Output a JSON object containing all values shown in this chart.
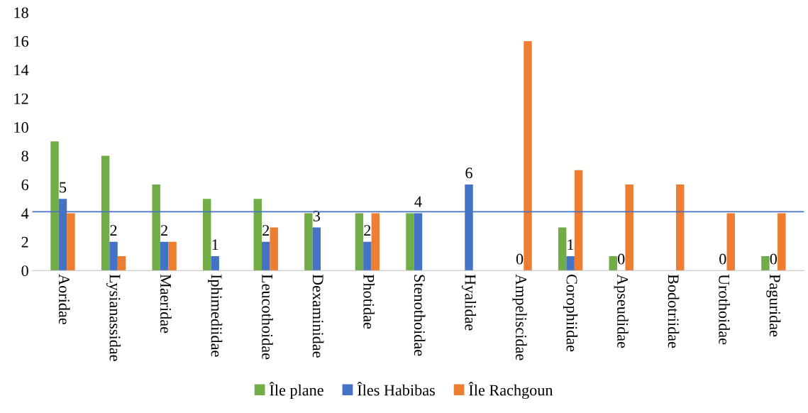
{
  "chart_data": {
    "type": "bar",
    "categories": [
      "Aoridae",
      "Lysianassidae",
      "Maeridae",
      "Iphimediidae",
      "Leucothoidae",
      "Dexaminidae",
      "Photidae",
      "Stenothoidae",
      "Hyalidae",
      "Ampeliscidae",
      "Corophiidae",
      "Apseudidae",
      "Bodotriidae",
      "Urothoidae",
      "Paguridae"
    ],
    "series": [
      {
        "name": "Île plane",
        "color": "#70ad47",
        "values": [
          9,
          8,
          6,
          5,
          5,
          4,
          4,
          4,
          0,
          0,
          3,
          1,
          0,
          0,
          1
        ]
      },
      {
        "name": "Îles Habibas",
        "color": "#4472c4",
        "values": [
          5,
          2,
          2,
          1,
          2,
          3,
          2,
          4,
          6,
          0,
          1,
          0,
          0,
          0,
          0
        ],
        "value_labels": [
          "5",
          "2",
          "2",
          "1",
          "2",
          "3",
          "2",
          "4",
          "6",
          "0",
          "1",
          "0",
          null,
          "0",
          "0"
        ]
      },
      {
        "name": "Île Rachgoun",
        "color": "#ed7d31",
        "values": [
          4,
          1,
          2,
          0,
          3,
          0,
          4,
          0,
          0,
          16,
          7,
          6,
          6,
          4,
          4
        ]
      }
    ],
    "ylim": [
      0,
      18
    ],
    "yticks": [
      0,
      2,
      4,
      6,
      8,
      10,
      12,
      14,
      16,
      18
    ],
    "ref_lines": [
      {
        "axis": "y",
        "value": 4.1,
        "color": "#4472c4"
      }
    ],
    "grid": false,
    "legend": "bottom"
  }
}
